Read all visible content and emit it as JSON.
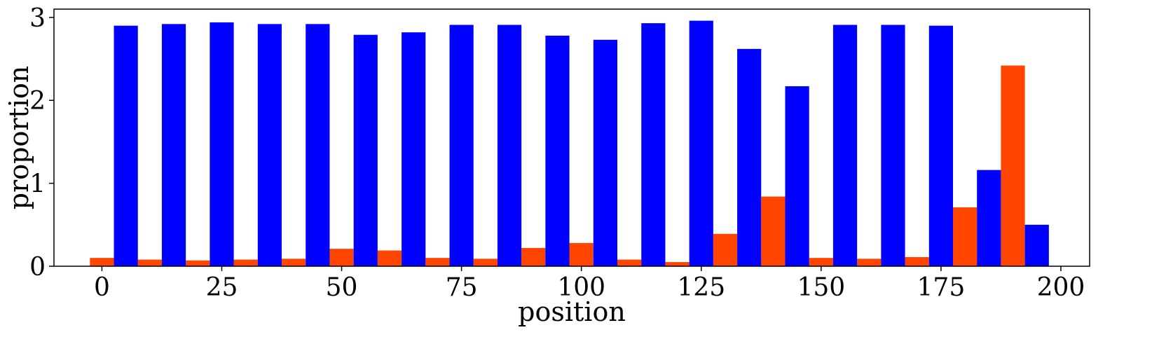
{
  "chart_data": {
    "type": "bar",
    "xlabel": "position",
    "ylabel": "proportion",
    "xlim": [
      -10,
      206
    ],
    "ylim": [
      0,
      3.1
    ],
    "xticks": [
      0,
      25,
      50,
      75,
      100,
      125,
      150,
      175,
      200
    ],
    "xtick_labels": [
      "0",
      "25",
      "50",
      "75",
      "100",
      "125",
      "150",
      "175",
      "200"
    ],
    "yticks": [
      0,
      1,
      2,
      3
    ],
    "ytick_labels": [
      "0",
      "1",
      "2",
      "3"
    ],
    "bar_width": 5,
    "grid": false,
    "legend": "none",
    "series": [
      {
        "color": "#ff4500",
        "points": [
          {
            "x": 0,
            "y": 0.1
          },
          {
            "x": 10,
            "y": 0.08
          },
          {
            "x": 20,
            "y": 0.07
          },
          {
            "x": 30,
            "y": 0.08
          },
          {
            "x": 40,
            "y": 0.09
          },
          {
            "x": 50,
            "y": 0.21
          },
          {
            "x": 60,
            "y": 0.19
          },
          {
            "x": 70,
            "y": 0.1
          },
          {
            "x": 80,
            "y": 0.09
          },
          {
            "x": 90,
            "y": 0.22
          },
          {
            "x": 100,
            "y": 0.28
          },
          {
            "x": 110,
            "y": 0.08
          },
          {
            "x": 120,
            "y": 0.05
          },
          {
            "x": 130,
            "y": 0.39
          },
          {
            "x": 140,
            "y": 0.84
          },
          {
            "x": 150,
            "y": 0.1
          },
          {
            "x": 160,
            "y": 0.09
          },
          {
            "x": 170,
            "y": 0.11
          },
          {
            "x": 180,
            "y": 0.71
          },
          {
            "x": 190,
            "y": 2.42
          }
        ]
      },
      {
        "color": "#0000ff",
        "points": [
          {
            "x": 5,
            "y": 2.9
          },
          {
            "x": 15,
            "y": 2.92
          },
          {
            "x": 25,
            "y": 2.94
          },
          {
            "x": 35,
            "y": 2.92
          },
          {
            "x": 45,
            "y": 2.92
          },
          {
            "x": 55,
            "y": 2.79
          },
          {
            "x": 65,
            "y": 2.82
          },
          {
            "x": 75,
            "y": 2.91
          },
          {
            "x": 85,
            "y": 2.91
          },
          {
            "x": 95,
            "y": 2.78
          },
          {
            "x": 105,
            "y": 2.73
          },
          {
            "x": 115,
            "y": 2.93
          },
          {
            "x": 125,
            "y": 2.96
          },
          {
            "x": 135,
            "y": 2.62
          },
          {
            "x": 145,
            "y": 2.17
          },
          {
            "x": 155,
            "y": 2.91
          },
          {
            "x": 165,
            "y": 2.91
          },
          {
            "x": 175,
            "y": 2.9
          },
          {
            "x": 185,
            "y": 1.16
          },
          {
            "x": 195,
            "y": 0.5
          }
        ]
      }
    ]
  }
}
